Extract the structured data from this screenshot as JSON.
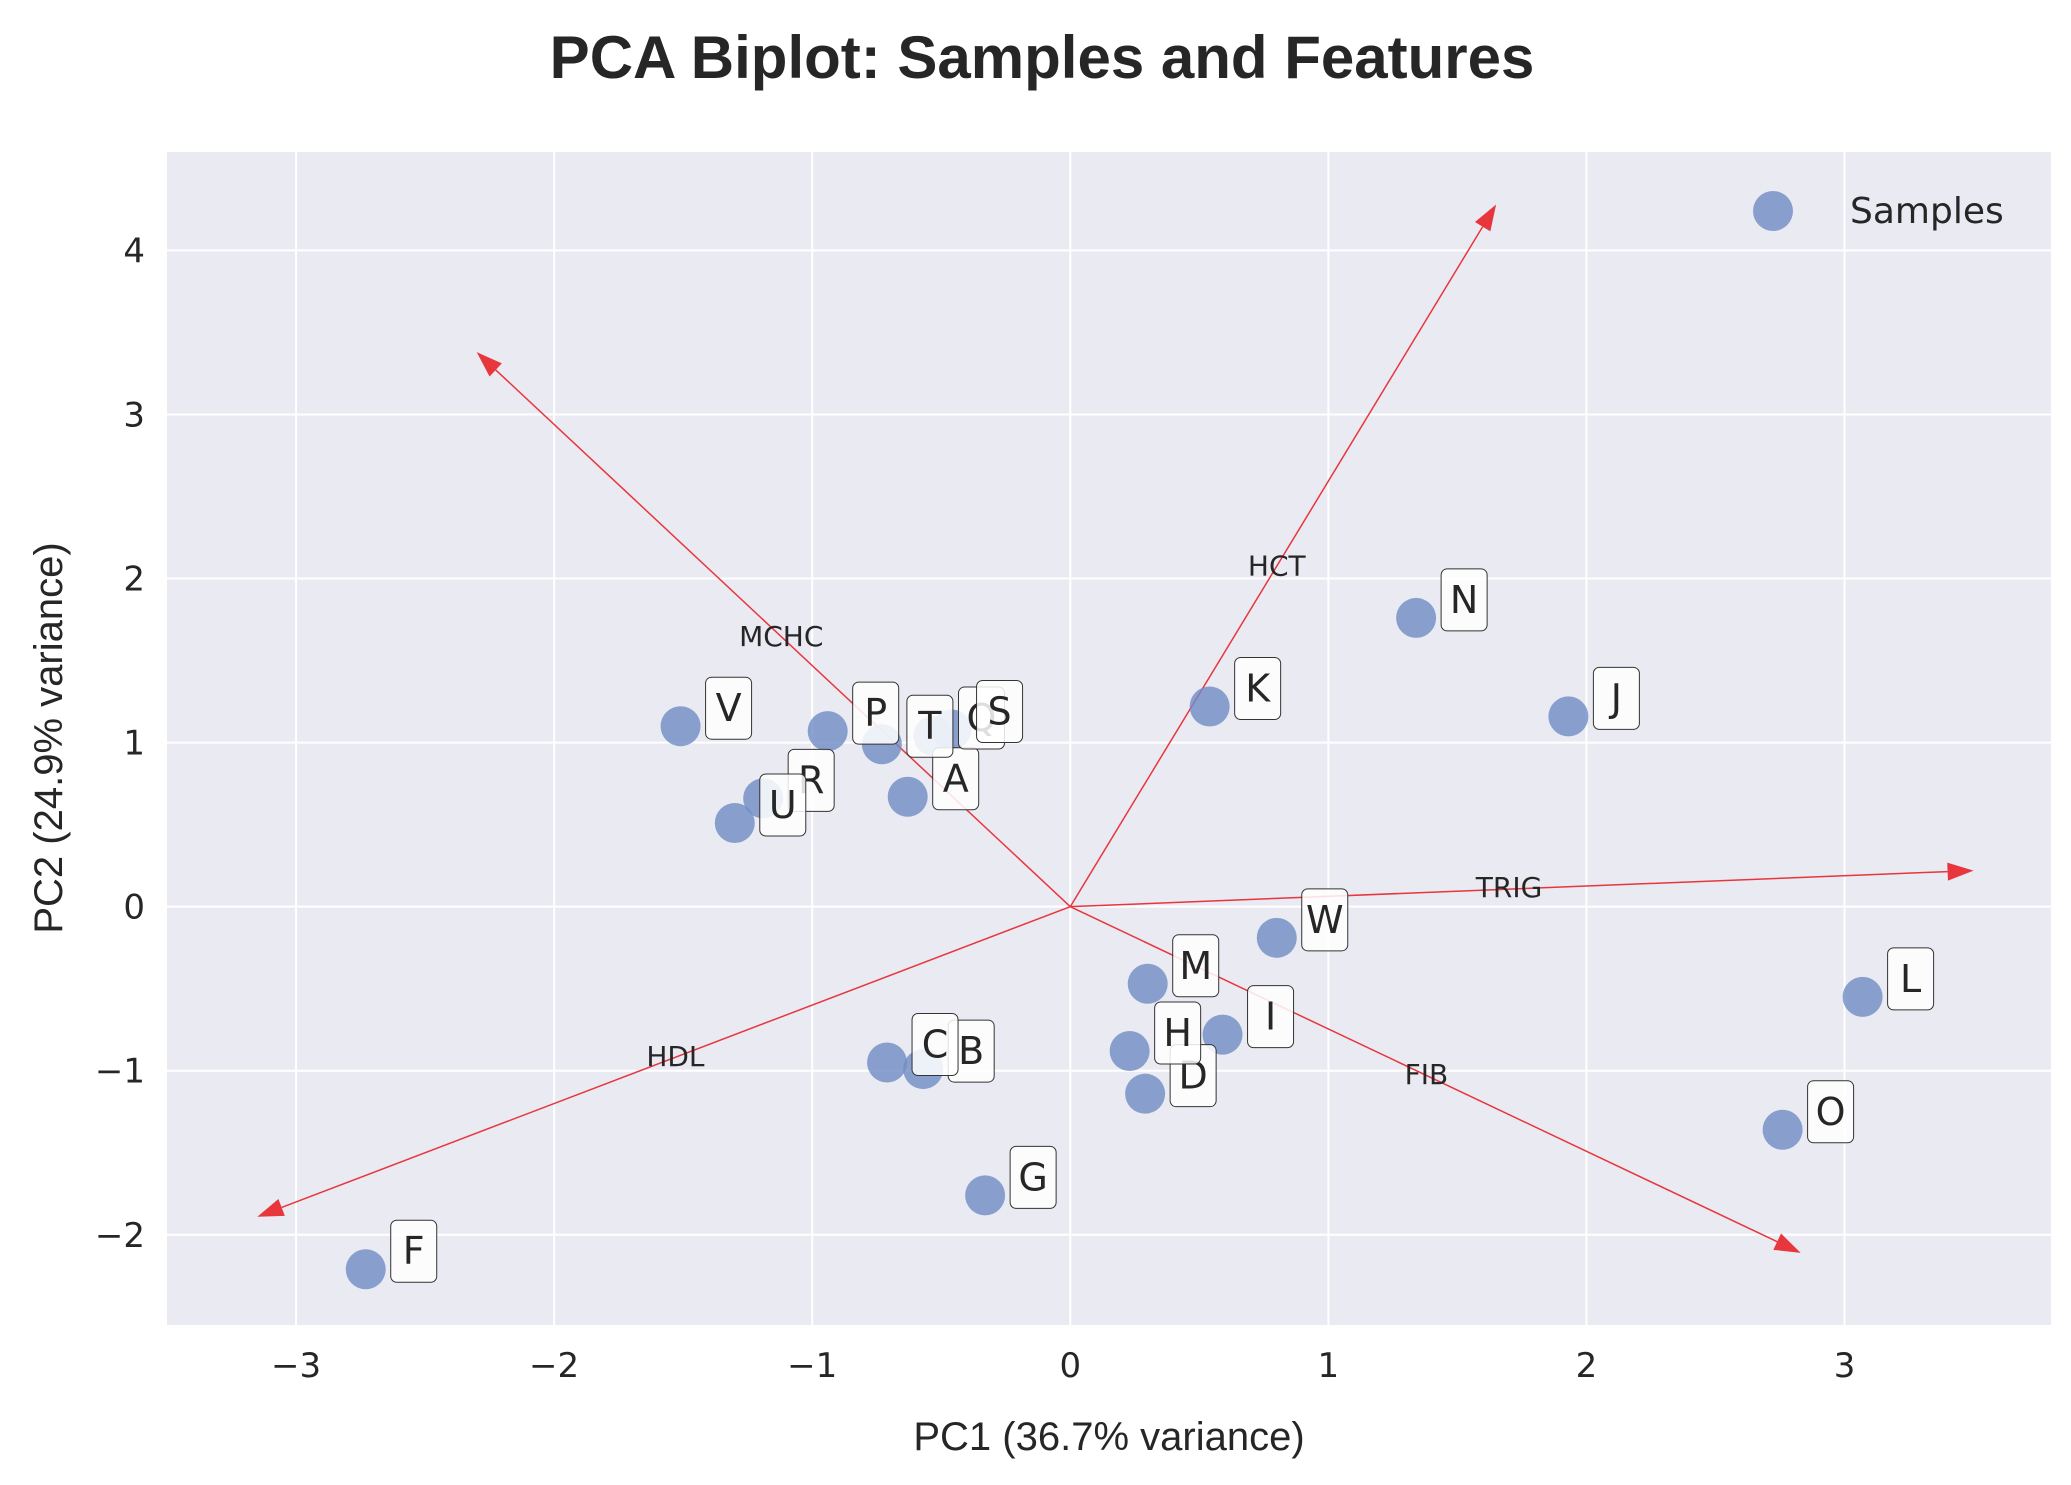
{
  "chart_data": {
    "type": "scatter",
    "title": "PCA Biplot: Samples and Features",
    "xlabel": "PC1 (36.7% variance)",
    "ylabel": "PC2 (24.9% variance)",
    "xlim": [
      -3.5,
      3.8
    ],
    "ylim": [
      -2.55,
      4.6
    ],
    "xticks": [
      -3,
      -2,
      -1,
      0,
      1,
      2,
      3
    ],
    "xtick_labels": [
      "−3",
      "−2",
      "−1",
      "0",
      "1",
      "2",
      "3"
    ],
    "yticks": [
      -2,
      -1,
      0,
      1,
      2,
      3,
      4
    ],
    "ytick_labels": [
      "−2",
      "−1",
      "0",
      "1",
      "2",
      "3",
      "4"
    ],
    "grid": true,
    "legend": {
      "position": "top-right",
      "entries": [
        "Samples"
      ]
    },
    "colors": {
      "points": "#6f8cc4",
      "arrows": "#e8363d",
      "background": "#eaeaf2",
      "grid": "#ffffff"
    },
    "series": [
      {
        "name": "Samples",
        "points": [
          {
            "label": "A",
            "x": -0.63,
            "y": 0.67
          },
          {
            "label": "B",
            "x": -0.57,
            "y": -0.99
          },
          {
            "label": "C",
            "x": -0.71,
            "y": -0.95
          },
          {
            "label": "D",
            "x": 0.29,
            "y": -1.14
          },
          {
            "label": "F",
            "x": -2.73,
            "y": -2.21
          },
          {
            "label": "G",
            "x": -0.33,
            "y": -1.76
          },
          {
            "label": "H",
            "x": 0.23,
            "y": -0.88
          },
          {
            "label": "I",
            "x": 0.59,
            "y": -0.78
          },
          {
            "label": "J",
            "x": 1.93,
            "y": 1.16
          },
          {
            "label": "K",
            "x": 0.54,
            "y": 1.22
          },
          {
            "label": "L",
            "x": 3.07,
            "y": -0.55
          },
          {
            "label": "M",
            "x": 0.3,
            "y": -0.47
          },
          {
            "label": "N",
            "x": 1.34,
            "y": 1.76
          },
          {
            "label": "O",
            "x": 2.76,
            "y": -1.36
          },
          {
            "label": "P",
            "x": -0.94,
            "y": 1.07
          },
          {
            "label": "Q",
            "x": -0.53,
            "y": 1.04
          },
          {
            "label": "R",
            "x": -1.19,
            "y": 0.66
          },
          {
            "label": "S",
            "x": -0.46,
            "y": 1.08
          },
          {
            "label": "T",
            "x": -0.73,
            "y": 0.99
          },
          {
            "label": "U",
            "x": -1.3,
            "y": 0.51
          },
          {
            "label": "V",
            "x": -1.51,
            "y": 1.1
          },
          {
            "label": "W",
            "x": 0.8,
            "y": -0.19
          }
        ]
      }
    ],
    "loadings": [
      {
        "name": "HCT",
        "x": 1.65,
        "y": 4.28,
        "label_x": 0.8,
        "label_y": 2.08
      },
      {
        "name": "MCHC",
        "x": -2.3,
        "y": 3.38,
        "label_x": -1.12,
        "label_y": 1.65
      },
      {
        "name": "TRIG",
        "x": 3.5,
        "y": 0.22,
        "label_x": 1.7,
        "label_y": 0.12
      },
      {
        "name": "FIB",
        "x": 2.83,
        "y": -2.11,
        "label_x": 1.38,
        "label_y": -1.02
      },
      {
        "name": "HDL",
        "x": -3.15,
        "y": -1.89,
        "label_x": -1.53,
        "label_y": -0.91
      }
    ]
  }
}
